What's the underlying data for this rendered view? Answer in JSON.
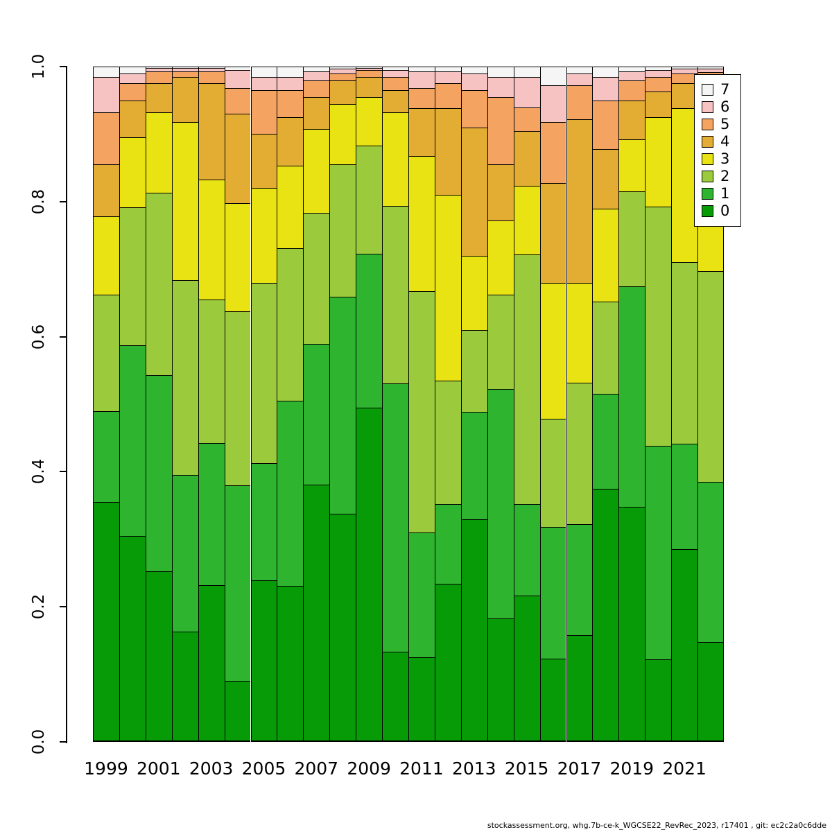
{
  "figure": {
    "background": "#FFFFFF"
  },
  "footer": {
    "text": "stockassessment.org, whg.7b-ce-k_WGCSE22_RevRec_2023, r17401 , git: ec2c2a0c6dde"
  },
  "legend": {
    "position": "top-right",
    "order_top_to_bottom": [
      "7",
      "6",
      "5",
      "4",
      "3",
      "2",
      "1",
      "0"
    ]
  },
  "chart_data": {
    "type": "bar",
    "stacked": true,
    "normalized": true,
    "title": "",
    "xlabel": "",
    "ylabel": "",
    "ylim": [
      0,
      1
    ],
    "grid": false,
    "ytick_values": [
      0,
      0.2,
      0.4,
      0.6,
      0.8,
      1
    ],
    "ytick_labels": [
      "0.0",
      "0.2",
      "0.4",
      "0.6",
      "0.8",
      "1.0"
    ],
    "x": [
      1999,
      2000,
      2001,
      2002,
      2003,
      2004,
      2005,
      2006,
      2007,
      2008,
      2009,
      2010,
      2011,
      2012,
      2013,
      2014,
      2015,
      2016,
      2017,
      2018,
      2019,
      2020,
      2021,
      2022
    ],
    "xtick_indices": [
      0,
      2,
      4,
      6,
      8,
      10,
      12,
      14,
      16,
      18,
      20,
      22
    ],
    "xtick_labels": [
      "1999",
      "2001",
      "2003",
      "2005",
      "2007",
      "2009",
      "2011",
      "2013",
      "2015",
      "2017",
      "2019",
      "2021"
    ],
    "series": [
      {
        "name": "0",
        "color": "#089B08",
        "values": [
          0.355,
          0.305,
          0.253,
          0.163,
          0.232,
          0.09,
          0.239,
          0.231,
          0.381,
          0.338,
          0.495,
          0.133,
          0.125,
          0.234,
          0.33,
          0.183,
          0.217,
          0.123,
          0.158,
          0.375,
          0.348,
          0.122,
          0.285,
          0.148
        ]
      },
      {
        "name": "1",
        "color": "#2EB42E",
        "values": [
          0.135,
          0.282,
          0.29,
          0.232,
          0.211,
          0.29,
          0.174,
          0.274,
          0.208,
          0.321,
          0.228,
          0.398,
          0.185,
          0.118,
          0.159,
          0.34,
          0.135,
          0.195,
          0.164,
          0.14,
          0.327,
          0.316,
          0.157,
          0.237
        ]
      },
      {
        "name": "2",
        "color": "#9BCB3C",
        "values": [
          0.172,
          0.205,
          0.27,
          0.289,
          0.212,
          0.258,
          0.267,
          0.226,
          0.194,
          0.196,
          0.16,
          0.263,
          0.357,
          0.183,
          0.121,
          0.139,
          0.37,
          0.16,
          0.21,
          0.137,
          0.14,
          0.355,
          0.268,
          0.312
        ]
      },
      {
        "name": "3",
        "color": "#EAE314",
        "values": [
          0.116,
          0.103,
          0.119,
          0.234,
          0.178,
          0.16,
          0.14,
          0.122,
          0.125,
          0.09,
          0.072,
          0.138,
          0.201,
          0.275,
          0.11,
          0.11,
          0.101,
          0.202,
          0.148,
          0.138,
          0.077,
          0.132,
          0.228,
          0.248
        ]
      },
      {
        "name": "4",
        "color": "#E3AD33",
        "values": [
          0.077,
          0.055,
          0.043,
          0.067,
          0.142,
          0.132,
          0.08,
          0.072,
          0.047,
          0.035,
          0.03,
          0.033,
          0.07,
          0.128,
          0.19,
          0.083,
          0.082,
          0.148,
          0.242,
          0.088,
          0.058,
          0.038,
          0.037,
          0.035
        ]
      },
      {
        "name": "5",
        "color": "#F4A460",
        "values": [
          0.077,
          0.025,
          0.018,
          0.008,
          0.018,
          0.038,
          0.065,
          0.04,
          0.025,
          0.01,
          0.01,
          0.02,
          0.03,
          0.037,
          0.055,
          0.1,
          0.035,
          0.09,
          0.05,
          0.072,
          0.03,
          0.022,
          0.015,
          0.012
        ]
      },
      {
        "name": "6",
        "color": "#F6C2C2",
        "values": [
          0.053,
          0.015,
          0.005,
          0.005,
          0.005,
          0.027,
          0.02,
          0.02,
          0.013,
          0.007,
          0.003,
          0.01,
          0.025,
          0.018,
          0.025,
          0.03,
          0.045,
          0.054,
          0.018,
          0.035,
          0.013,
          0.01,
          0.007,
          0.005
        ]
      },
      {
        "name": "7",
        "color": "#F5F5F5",
        "values": [
          0.015,
          0.01,
          0.002,
          0.002,
          0.002,
          0.005,
          0.015,
          0.015,
          0.007,
          0.003,
          0.002,
          0.005,
          0.007,
          0.007,
          0.01,
          0.015,
          0.015,
          0.028,
          0.01,
          0.015,
          0.007,
          0.005,
          0.003,
          0.003
        ]
      }
    ],
    "legend_position": "top-right"
  }
}
